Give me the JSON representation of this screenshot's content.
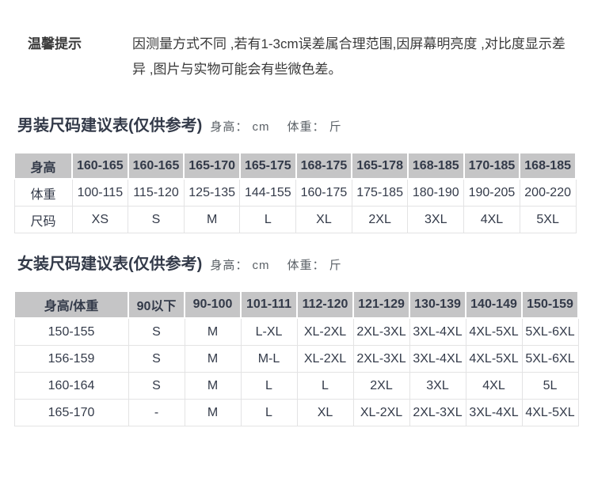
{
  "notice": {
    "label": "温馨提示",
    "text": "因测量方式不同 ,若有1-3cm误差属合理范围,因屏幕明亮度 ,对比度显示差异 ,图片与实物可能会有些微色差。"
  },
  "men": {
    "title": "男装尺码建议表(仅供参考)",
    "units": {
      "height": "身高： cm",
      "weight": "体重： 斤"
    },
    "header": [
      "身高",
      "160-165",
      "160-165",
      "165-170",
      "165-175",
      "168-175",
      "165-178",
      "168-185",
      "170-185",
      "168-185"
    ],
    "rows": [
      [
        "体重",
        "100-115",
        "115-120",
        "125-135",
        "144-155",
        "160-175",
        "175-185",
        "180-190",
        "190-205",
        "200-220"
      ],
      [
        "尺码",
        "XS",
        "S",
        "M",
        "L",
        "XL",
        "2XL",
        "3XL",
        "4XL",
        "5XL"
      ]
    ]
  },
  "women": {
    "title": "女装尺码建议表(仅供参考)",
    "units": {
      "height": "身高： cm",
      "weight": "体重： 斤"
    },
    "header": [
      "身高/体重",
      "90以下",
      "90-100",
      "101-111",
      "112-120",
      "121-129",
      "130-139",
      "140-149",
      "150-159"
    ],
    "rows": [
      [
        "150-155",
        "S",
        "M",
        "L-XL",
        "XL-2XL",
        "2XL-3XL",
        "3XL-4XL",
        "4XL-5XL",
        "5XL-6XL"
      ],
      [
        "156-159",
        "S",
        "M",
        "M-L",
        "XL-2XL",
        "2XL-3XL",
        "3XL-4XL",
        "4XL-5XL",
        "5XL-6XL"
      ],
      [
        "160-164",
        "S",
        "M",
        "L",
        "L",
        "2XL",
        "3XL",
        "4XL",
        "5L"
      ],
      [
        "165-170",
        "-",
        "M",
        "L",
        "XL",
        "XL-2XL",
        "2XL-3XL",
        "3XL-4XL",
        "4XL-5XL"
      ]
    ]
  },
  "colors": {
    "header_bg": "#c5c5c6",
    "text_dark": "#333a49",
    "border": "#e3e3e4",
    "units_text": "#5a6066"
  }
}
